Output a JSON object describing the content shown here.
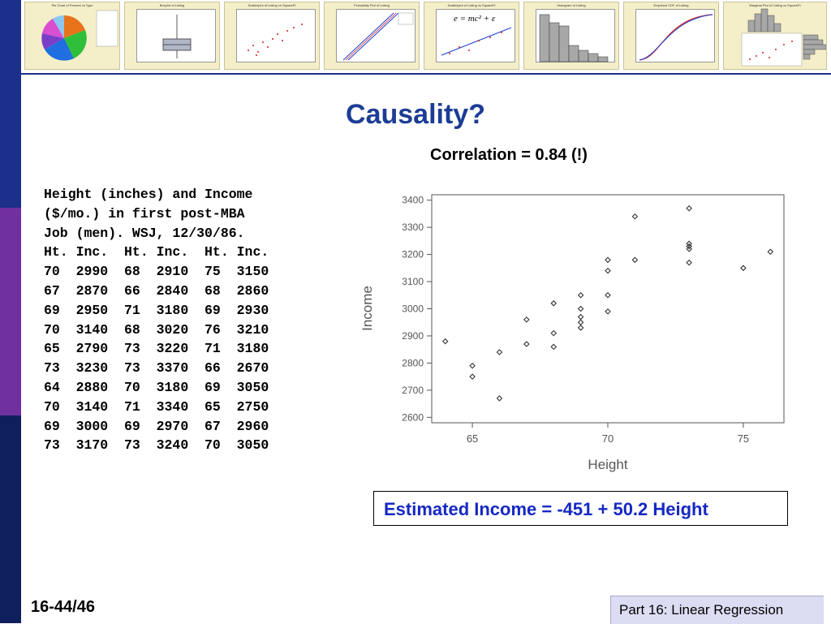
{
  "slide": {
    "title": "Causality?",
    "correlation_note": "Correlation = 0.84 (!)",
    "estimate": "Estimated Income = -451 + 50.2 Height",
    "page_number": "16-44/46",
    "footer": "Part 16: Linear Regression"
  },
  "data_table": {
    "caption_lines": [
      "Height (inches) and Income",
      "($/mo.) in first post-MBA",
      "Job (men). WSJ, 12/30/86."
    ],
    "header": [
      "Ht.",
      "Inc.",
      "Ht.",
      "Inc.",
      "Ht.",
      "Inc."
    ],
    "rows": [
      [
        "70",
        "2990",
        "68",
        "2910",
        "75",
        "3150"
      ],
      [
        "67",
        "2870",
        "66",
        "2840",
        "68",
        "2860"
      ],
      [
        "69",
        "2950",
        "71",
        "3180",
        "69",
        "2930"
      ],
      [
        "70",
        "3140",
        "68",
        "3020",
        "76",
        "3210"
      ],
      [
        "65",
        "2790",
        "73",
        "3220",
        "71",
        "3180"
      ],
      [
        "73",
        "3230",
        "73",
        "3370",
        "66",
        "2670"
      ],
      [
        "64",
        "2880",
        "70",
        "3180",
        "69",
        "3050"
      ],
      [
        "70",
        "3140",
        "71",
        "3340",
        "65",
        "2750"
      ],
      [
        "69",
        "3000",
        "69",
        "2970",
        "67",
        "2960"
      ],
      [
        "73",
        "3170",
        "73",
        "3240",
        "70",
        "3050"
      ]
    ]
  },
  "thumbnails": [
    {
      "title": "Pie Chart of Percent vs Type"
    },
    {
      "title": "Boxplot of Listing"
    },
    {
      "title": "Scatterplot of Listing vs SquareFt"
    },
    {
      "title": "Probability Plot of Listing"
    },
    {
      "title": "Scatterplot of Listing vs SquareFt"
    },
    {
      "title": "Histogram of Listing"
    },
    {
      "title": "Empirical CDF of Listing"
    },
    {
      "title": "Marginal Plot of Listing vs SquareFt"
    }
  ],
  "formula_thumb": "e = mc² + ε",
  "colors": {
    "title_blue": "#1c3d96",
    "estimate_blue": "#1528c4",
    "bar_blue": "#1c2f8a",
    "bar_purple": "#7030a0",
    "bar_navy": "#0f1f5e"
  },
  "chart_data": {
    "type": "scatter",
    "xlabel": "Height",
    "ylabel": "Income",
    "xlim": [
      63.5,
      76.5
    ],
    "ylim": [
      2580,
      3420
    ],
    "xticks": [
      65,
      70,
      75
    ],
    "yticks": [
      2600,
      2700,
      2800,
      2900,
      3000,
      3100,
      3200,
      3300,
      3400
    ],
    "grid": false,
    "points": [
      [
        64,
        2880
      ],
      [
        65,
        2790
      ],
      [
        65,
        2750
      ],
      [
        66,
        2840
      ],
      [
        66,
        2670
      ],
      [
        67,
        2960
      ],
      [
        67,
        2870
      ],
      [
        68,
        3020
      ],
      [
        68,
        2910
      ],
      [
        68,
        2860
      ],
      [
        69,
        3050
      ],
      [
        69,
        3000
      ],
      [
        69,
        2970
      ],
      [
        69,
        2950
      ],
      [
        69,
        2930
      ],
      [
        70,
        3180
      ],
      [
        70,
        3140
      ],
      [
        70,
        3050
      ],
      [
        70,
        2990
      ],
      [
        71,
        3340
      ],
      [
        71,
        3180
      ],
      [
        73,
        3370
      ],
      [
        73,
        3240
      ],
      [
        73,
        3230
      ],
      [
        73,
        3220
      ],
      [
        73,
        3170
      ],
      [
        75,
        3150
      ],
      [
        76,
        3210
      ]
    ]
  }
}
